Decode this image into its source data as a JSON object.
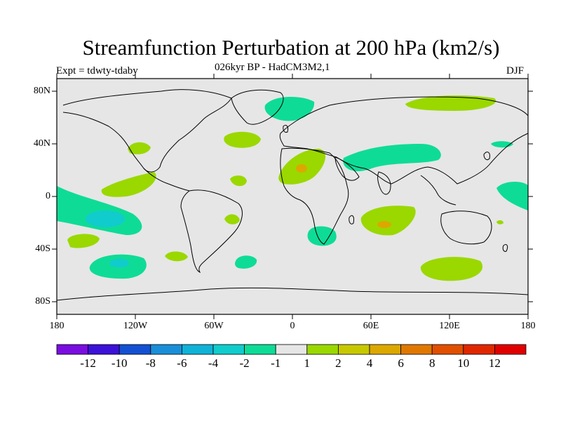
{
  "title": "Streamfunction Perturbation at 200 hPa (km2/s)",
  "subtitle": "026kyr BP - HadCM3M2,1",
  "expt_label": "Expt = tdwty-tdaby",
  "season": "DJF",
  "lat_labels": [
    "80N",
    "40N",
    "0",
    "40S",
    "80S"
  ],
  "lon_labels": [
    "180",
    "120W",
    "60W",
    "0",
    "60E",
    "120E",
    "180"
  ],
  "colorbar": {
    "colors": [
      "#7a0ee0",
      "#3c12d8",
      "#1450d2",
      "#1a8ed8",
      "#10b2d8",
      "#10cccc",
      "#0edc96",
      "#e6e6e6",
      "#9ad800",
      "#c8c800",
      "#dca800",
      "#e07800",
      "#e05000",
      "#e02800",
      "#e00000"
    ],
    "labels": [
      "-12",
      "-10",
      "-8",
      "-6",
      "-4",
      "-2",
      "-1",
      "1",
      "2",
      "4",
      "6",
      "8",
      "10",
      "12"
    ]
  },
  "legend_colors": {
    "background": "#e6e6e6",
    "neg1": "#0edc96",
    "neg2": "#10cccc",
    "pos1": "#9ad800",
    "pos2": "#dca800"
  }
}
